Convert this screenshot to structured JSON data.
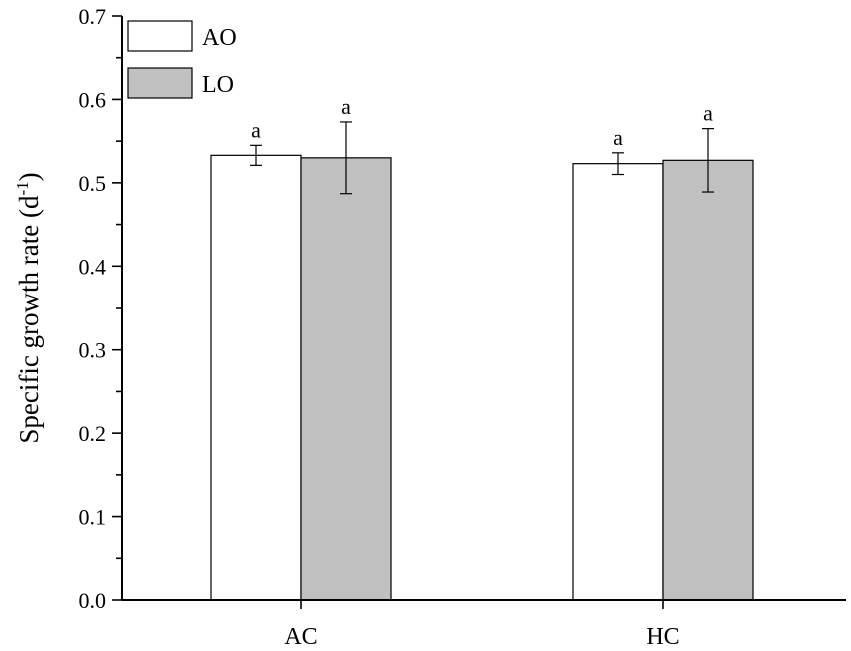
{
  "chart_data": {
    "type": "bar",
    "categories": [
      "AC",
      "HC"
    ],
    "series": [
      {
        "name": "AO",
        "values": [
          0.533,
          0.523
        ],
        "errors": [
          0.012,
          0.013
        ],
        "labels": [
          "a",
          "a"
        ],
        "color": "#ffffff"
      },
      {
        "name": "LO",
        "values": [
          0.53,
          0.527
        ],
        "errors": [
          0.043,
          0.038
        ],
        "labels": [
          "a",
          "a"
        ],
        "color": "#c0c0c0"
      }
    ],
    "ylabel_main": "Specific growth rate (d",
    "ylabel_sup": "-1",
    "ylabel_close": ")",
    "ylim": [
      0,
      0.7
    ],
    "yticks": [
      "0.0",
      "0.1",
      "0.2",
      "0.3",
      "0.4",
      "0.5",
      "0.6",
      "0.7"
    ],
    "ytick_values": [
      0,
      0.1,
      0.2,
      0.3,
      0.4,
      0.5,
      0.6,
      0.7
    ],
    "legend_position": "top-left",
    "grid": false
  }
}
